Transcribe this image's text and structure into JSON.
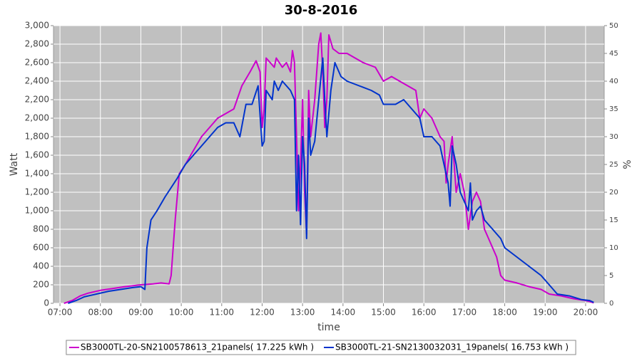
{
  "chart_data": {
    "type": "line",
    "title": "30-8-2016",
    "xlabel": "time",
    "ylabel": "Watt",
    "y2label": "%",
    "xlim": [
      6.84,
      20.46
    ],
    "xticks": [
      {
        "value": 7,
        "label": "07:00"
      },
      {
        "value": 8,
        "label": "08:00"
      },
      {
        "value": 9,
        "label": "09:00"
      },
      {
        "value": 10,
        "label": "10:00"
      },
      {
        "value": 11,
        "label": "11:00"
      },
      {
        "value": 12,
        "label": "12:00"
      },
      {
        "value": 13,
        "label": "13:00"
      },
      {
        "value": 14,
        "label": "14:00"
      },
      {
        "value": 15,
        "label": "15:00"
      },
      {
        "value": 16,
        "label": "16:00"
      },
      {
        "value": 17,
        "label": "17:00"
      },
      {
        "value": 18,
        "label": "18:00"
      },
      {
        "value": 19,
        "label": "19:00"
      },
      {
        "value": 20,
        "label": "20:00"
      }
    ],
    "ylim": [
      0,
      3000
    ],
    "yticks": [
      0,
      200,
      400,
      600,
      800,
      {
        "value": 1000,
        "label": "1,000"
      },
      {
        "value": 1200,
        "label": "1,200"
      },
      {
        "value": 1400,
        "label": "1,400"
      },
      {
        "value": 1600,
        "label": "1,600"
      },
      {
        "value": 1800,
        "label": "1,800"
      },
      {
        "value": 2000,
        "label": "2,000"
      },
      {
        "value": 2200,
        "label": "2,200"
      },
      {
        "value": 2400,
        "label": "2,400"
      },
      {
        "value": 2600,
        "label": "2,600"
      },
      {
        "value": 2800,
        "label": "2,800"
      },
      {
        "value": 3000,
        "label": "3,000"
      }
    ],
    "y2lim": [
      0,
      50
    ],
    "y2ticks": [
      0,
      5,
      10,
      15,
      20,
      25,
      30,
      35,
      40,
      45,
      50
    ],
    "grid": true,
    "legend": "bottom",
    "series": [
      {
        "name": "SB3000TL-20-SN2100578613_21panels( 17.225 kWh )",
        "color": "#cc00cc",
        "x": [
          7.1,
          7.3,
          7.5,
          7.7,
          8.0,
          8.3,
          8.6,
          9.0,
          9.3,
          9.5,
          9.7,
          9.75,
          9.85,
          9.95,
          10.1,
          10.3,
          10.5,
          10.7,
          10.9,
          11.1,
          11.3,
          11.5,
          11.7,
          11.85,
          11.95,
          12.0,
          12.05,
          12.1,
          12.2,
          12.3,
          12.35,
          12.5,
          12.6,
          12.7,
          12.75,
          12.8,
          12.85,
          12.9,
          12.95,
          13.0,
          13.05,
          13.1,
          13.15,
          13.2,
          13.3,
          13.4,
          13.45,
          13.5,
          13.55,
          13.6,
          13.65,
          13.75,
          13.9,
          14.1,
          14.3,
          14.5,
          14.8,
          15.0,
          15.2,
          15.4,
          15.6,
          15.8,
          15.9,
          16.0,
          16.2,
          16.3,
          16.4,
          16.5,
          16.55,
          16.6,
          16.7,
          16.75,
          16.8,
          16.9,
          17.0,
          17.1,
          17.2,
          17.3,
          17.4,
          17.5,
          17.6,
          17.8,
          17.9,
          18.0,
          18.3,
          18.6,
          18.9,
          19.1,
          19.4,
          19.7,
          20.0,
          20.1,
          20.2
        ],
        "values": [
          0,
          30,
          80,
          110,
          140,
          160,
          180,
          200,
          210,
          220,
          210,
          300,
          900,
          1400,
          1500,
          1650,
          1800,
          1900,
          2000,
          2050,
          2100,
          2350,
          2500,
          2620,
          2500,
          1900,
          2100,
          2650,
          2600,
          2550,
          2650,
          2550,
          2600,
          2500,
          2730,
          2600,
          1800,
          1000,
          1500,
          2200,
          1200,
          750,
          2300,
          1800,
          2200,
          2800,
          2920,
          2500,
          1900,
          2200,
          2900,
          2750,
          2700,
          2700,
          2650,
          2600,
          2550,
          2400,
          2450,
          2400,
          2350,
          2300,
          2000,
          2100,
          2000,
          1900,
          1800,
          1750,
          1300,
          1500,
          1800,
          1500,
          1200,
          1400,
          1200,
          800,
          1100,
          1200,
          1100,
          800,
          700,
          500,
          300,
          250,
          220,
          180,
          150,
          100,
          80,
          50,
          30,
          20,
          5
        ]
      },
      {
        "name": "SB3000TL-21-SN2130032031_19panels( 16.753 kWh )",
        "color": "#0033cc",
        "x": [
          7.2,
          7.4,
          7.6,
          7.9,
          8.2,
          8.5,
          8.8,
          9.0,
          9.1,
          9.15,
          9.25,
          9.4,
          9.6,
          9.75,
          9.9,
          10.1,
          10.3,
          10.5,
          10.7,
          10.9,
          11.1,
          11.3,
          11.45,
          11.6,
          11.75,
          11.9,
          12.0,
          12.05,
          12.1,
          12.25,
          12.3,
          12.4,
          12.5,
          12.6,
          12.7,
          12.8,
          12.85,
          12.9,
          12.95,
          13.0,
          13.05,
          13.1,
          13.15,
          13.2,
          13.3,
          13.4,
          13.5,
          13.55,
          13.6,
          13.7,
          13.8,
          13.95,
          14.1,
          14.4,
          14.7,
          14.9,
          15.0,
          15.3,
          15.5,
          15.7,
          15.9,
          16.0,
          16.2,
          16.4,
          16.5,
          16.6,
          16.65,
          16.7,
          16.8,
          16.9,
          17.0,
          17.1,
          17.15,
          17.2,
          17.3,
          17.4,
          17.5,
          17.6,
          17.7,
          17.8,
          17.9,
          18.0,
          18.3,
          18.6,
          18.9,
          19.1,
          19.3,
          19.6,
          19.9,
          20.1,
          20.2
        ],
        "values": [
          0,
          30,
          70,
          100,
          130,
          150,
          170,
          180,
          150,
          600,
          900,
          1000,
          1150,
          1250,
          1350,
          1500,
          1600,
          1700,
          1800,
          1900,
          1950,
          1950,
          1800,
          2150,
          2150,
          2350,
          1700,
          1750,
          2300,
          2200,
          2400,
          2300,
          2400,
          2350,
          2300,
          2200,
          1000,
          1600,
          850,
          1800,
          1500,
          700,
          2000,
          1600,
          1750,
          2200,
          2650,
          2200,
          1800,
          2300,
          2600,
          2450,
          2400,
          2350,
          2300,
          2250,
          2150,
          2150,
          2200,
          2100,
          2000,
          1800,
          1800,
          1700,
          1500,
          1300,
          1050,
          1700,
          1500,
          1200,
          1100,
          1000,
          1300,
          900,
          1000,
          1050,
          900,
          850,
          800,
          750,
          700,
          600,
          500,
          400,
          300,
          200,
          100,
          80,
          40,
          30,
          10
        ]
      }
    ]
  }
}
